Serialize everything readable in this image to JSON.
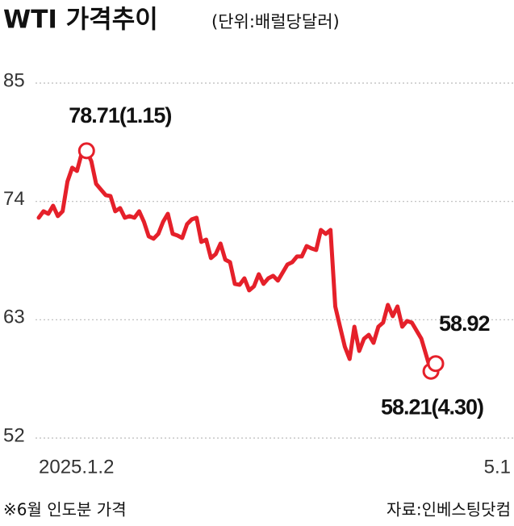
{
  "chart_data": {
    "type": "line",
    "title": "WTI 가격추이",
    "subtitle": "(단위:배럴당달러)",
    "categories": [
      "2025.1.2",
      null,
      null,
      null,
      null,
      null,
      null,
      null,
      null,
      null,
      null,
      null,
      null,
      null,
      null,
      null,
      null,
      null,
      null,
      null,
      null,
      null,
      null,
      null,
      null,
      null,
      null,
      null,
      null,
      null,
      null,
      null,
      null,
      null,
      null,
      null,
      null,
      null,
      null,
      null,
      null,
      null,
      null,
      null,
      null,
      null,
      null,
      null,
      null,
      null,
      null,
      null,
      null,
      null,
      null,
      null,
      null,
      null,
      null,
      null,
      null,
      null,
      null,
      null,
      null,
      null,
      null,
      null,
      null,
      null,
      null,
      null,
      null,
      null,
      null,
      null,
      null,
      null,
      null,
      null,
      null,
      null,
      null,
      "5.1"
    ],
    "series": [
      {
        "name": "WTI",
        "color": "#e5202a",
        "values": [
          72.48,
          73.08,
          72.85,
          73.6,
          72.63,
          73.08,
          75.85,
          77.13,
          76.83,
          78.48,
          78.71,
          77.73,
          75.63,
          75.1,
          74.58,
          74.5,
          73.08,
          73.38,
          72.48,
          72.63,
          72.48,
          73.08,
          72.1,
          70.75,
          70.53,
          70.98,
          72.1,
          72.85,
          70.98,
          70.83,
          70.6,
          71.88,
          72.33,
          72.48,
          70.23,
          70.45,
          68.73,
          69.1,
          70.08,
          68.58,
          68.35,
          66.33,
          66.25,
          66.85,
          65.73,
          66.1,
          67.23,
          66.33,
          66.85,
          67.08,
          66.63,
          67.38,
          68.13,
          68.35,
          68.88,
          68.88,
          69.85,
          69.63,
          69.48,
          71.35,
          70.98,
          71.35,
          64.23,
          62.35,
          60.48,
          59.35,
          62.35,
          60.1,
          61.23,
          61.6,
          60.85,
          62.35,
          62.73,
          64.38,
          63.33,
          64.23,
          62.35,
          62.88,
          62.73,
          61.98,
          61.23,
          59.73,
          58.21,
          58.92
        ]
      }
    ],
    "ylim": [
      52,
      85
    ],
    "yticks": [
      52,
      63,
      74,
      85
    ],
    "grid": true,
    "annotations": [
      "78.71(1.15)",
      "58.21(4.30)",
      "58.92"
    ],
    "footnote": "※6월 인도분 가격",
    "source": "자료:인베스팅닷컴"
  }
}
